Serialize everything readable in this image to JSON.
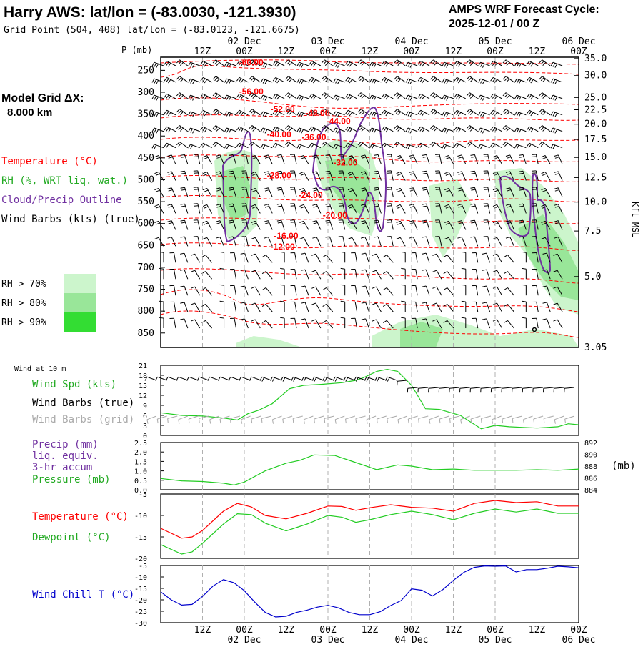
{
  "header": {
    "title": "Harry AWS:  lat/lon = (-83.0030, -121.3930)",
    "subtitle": "Grid Point (504, 408) lat/lon = (-83.0123, -121.6675)",
    "cycle_line1": "AMPS WRF Forecast Cycle:",
    "cycle_line2": "2025-12-01 / 00  Z"
  },
  "grid_label": {
    "line1": "Model Grid ΔX:",
    "line2": "8.000 km"
  },
  "legend": {
    "temperature": "Temperature (°C)",
    "rh": "RH (%, WRT liq. wat.)",
    "cloud": "Cloud/Precip Outline",
    "wind": "Wind Barbs (kts) (true)",
    "rh70": "RH > 70%",
    "rh80": "RH > 80%",
    "rh90": "RH > 90%"
  },
  "time_axis": {
    "date_labels": [
      "02 Dec",
      "03 Dec",
      "04 Dec",
      "05 Dec",
      "06 Dec"
    ],
    "hour_labels": [
      "12Z",
      "00Z",
      "12Z",
      "00Z",
      "12Z",
      "00Z",
      "12Z",
      "00Z",
      "12Z",
      "00Z"
    ],
    "hours": [
      12,
      24,
      36,
      48,
      60,
      72,
      84,
      96,
      108,
      120
    ],
    "date_hours": [
      24,
      48,
      72,
      96,
      120
    ]
  },
  "colors": {
    "temperature": "#ff0000",
    "rh": "#22cc22",
    "cloud": "#7030a0",
    "wind": "#000000",
    "wind_grid": "#aaaaaa",
    "windchill": "#0000cc",
    "rh70": "#ccf5cc",
    "rh80": "#99e699",
    "rh90": "#33dd33"
  },
  "chart_data": [
    {
      "type": "heatmap",
      "title": "Vertical cross-section",
      "ylabel": "P (mb)",
      "y2label": "Kft MSL",
      "p_ticks": [
        250,
        300,
        350,
        400,
        450,
        500,
        550,
        600,
        650,
        700,
        750,
        800,
        850
      ],
      "height_ticks": [
        "35.0",
        "30.0",
        "25.0",
        "22.5",
        "20.0",
        "17.5",
        "15.0",
        "12.5",
        "10.0",
        "7.5",
        "5.0",
        "3.05"
      ],
      "height_tick_p": [
        223,
        262,
        312,
        340,
        373,
        408,
        449,
        495,
        551,
        617,
        721,
        883
      ],
      "xlim": [
        0,
        120
      ],
      "ylim": [
        883,
        220
      ],
      "isotherm_labels": [
        {
          "text": "-60.00",
          "hour": 26,
          "p": 232
        },
        {
          "text": "-56.00",
          "hour": 26,
          "p": 298
        },
        {
          "text": "-52.00",
          "hour": 35,
          "p": 338
        },
        {
          "text": "-48.00",
          "hour": 45,
          "p": 347
        },
        {
          "text": "-44.00",
          "hour": 51,
          "p": 366
        },
        {
          "text": "-40.00",
          "hour": 34,
          "p": 396
        },
        {
          "text": "-36.00",
          "hour": 44,
          "p": 403
        },
        {
          "text": "-32.00",
          "hour": 53,
          "p": 461
        },
        {
          "text": "-28.00",
          "hour": 34,
          "p": 490
        },
        {
          "text": "-24.00",
          "hour": 43,
          "p": 535
        },
        {
          "text": "-20.00",
          "hour": 50,
          "p": 581
        },
        {
          "text": "-16.00",
          "hour": 36,
          "p": 628
        },
        {
          "text": "-12.00",
          "hour": 35,
          "p": 653
        }
      ]
    },
    {
      "type": "line",
      "title": "Wind at 10 m",
      "series_labels": [
        "Wind Spd (kts)",
        "Wind Barbs (true)",
        "Wind Barbs (grid)"
      ],
      "y_ticks": [
        "21",
        "18",
        "15",
        "12",
        "9",
        "6",
        "3",
        "0"
      ],
      "ylim": [
        0,
        21
      ],
      "series": [
        {
          "name": "Wind Spd (kts)",
          "x": [
            0,
            6,
            12,
            18,
            22,
            25,
            28,
            32,
            37,
            41,
            46,
            52,
            56,
            58,
            62,
            65,
            68,
            72,
            76,
            80,
            86,
            92,
            96,
            100,
            104,
            108,
            114,
            117,
            120
          ],
          "values": [
            6.8,
            6.0,
            5.8,
            5.2,
            4.6,
            6.5,
            7.5,
            9.5,
            14.0,
            15.0,
            15.3,
            15.8,
            16.5,
            17.2,
            19.2,
            19.8,
            19.2,
            15.0,
            8.0,
            7.8,
            6.0,
            2.0,
            3.0,
            2.6,
            2.4,
            2.2,
            2.6,
            3.5,
            3.2
          ]
        }
      ]
    },
    {
      "type": "line",
      "series_labels": [
        "Precip (mm)",
        "liq. equiv.",
        "3-hr accum",
        "Pressure (mb)"
      ],
      "y_ticks": [
        "2.5",
        "2.0",
        "1.5",
        "1.0",
        "0.5",
        "0.0"
      ],
      "y2_ticks": [
        "892",
        "890",
        "888",
        "886",
        "884"
      ],
      "ylim": [
        0,
        2.5
      ],
      "y2lim": [
        884,
        892
      ],
      "series": [
        {
          "name": "Precip (mm)",
          "x": [
            0,
            120
          ],
          "values": [
            0,
            0
          ]
        },
        {
          "name": "Pressure (mb)",
          "x": [
            0,
            6,
            12,
            18,
            21,
            24,
            30,
            36,
            40,
            44,
            50,
            56,
            62,
            68,
            72,
            78,
            84,
            90,
            96,
            102,
            108,
            114,
            120
          ],
          "values": [
            885.9,
            885.5,
            885.4,
            885.1,
            884.8,
            885.3,
            887.2,
            888.5,
            889.0,
            889.9,
            889.8,
            888.6,
            887.4,
            888.2,
            888.0,
            887.4,
            887.5,
            887.3,
            887.3,
            887.3,
            887.4,
            887.3,
            887.5
          ]
        }
      ]
    },
    {
      "type": "line",
      "series_labels": [
        "Temperature (°C)",
        "Dewpoint (°C)"
      ],
      "y_ticks": [
        "-5",
        "-10",
        "-15",
        "-20"
      ],
      "ylim": [
        -20,
        -5
      ],
      "series": [
        {
          "name": "Temperature (°C)",
          "x": [
            0,
            6,
            9,
            12,
            18,
            22,
            26,
            30,
            36,
            42,
            48,
            52,
            56,
            60,
            66,
            72,
            78,
            84,
            90,
            96,
            102,
            108,
            114,
            120
          ],
          "values": [
            -13.0,
            -15.3,
            -15.0,
            -13.5,
            -9.0,
            -7.2,
            -8.0,
            -10.0,
            -10.8,
            -9.5,
            -7.8,
            -7.9,
            -8.8,
            -8.2,
            -7.5,
            -8.1,
            -8.3,
            -9.0,
            -7.2,
            -6.5,
            -7.0,
            -6.8,
            -7.8,
            -7.8
          ]
        },
        {
          "name": "Dewpoint (°C)",
          "x": [
            0,
            6,
            9,
            12,
            18,
            22,
            26,
            30,
            36,
            42,
            48,
            52,
            56,
            60,
            66,
            72,
            78,
            84,
            90,
            96,
            102,
            108,
            114,
            120
          ],
          "values": [
            -16.8,
            -19.0,
            -18.5,
            -16.5,
            -12.0,
            -9.6,
            -9.8,
            -11.8,
            -13.6,
            -12.0,
            -10.0,
            -10.4,
            -11.6,
            -11.0,
            -9.8,
            -9.0,
            -9.8,
            -11.0,
            -9.5,
            -8.5,
            -9.2,
            -8.5,
            -9.5,
            -9.5
          ]
        }
      ]
    },
    {
      "type": "line",
      "series_labels": [
        "Wind Chill T (°C)"
      ],
      "y_ticks": [
        "-5",
        "-10",
        "-15",
        "-20",
        "-25",
        "-30"
      ],
      "ylim": [
        -30,
        -5
      ],
      "series": [
        {
          "name": "Wind Chill T (°C)",
          "x": [
            0,
            3,
            6,
            9,
            12,
            15,
            18,
            21,
            24,
            27,
            30,
            33,
            36,
            39,
            42,
            45,
            48,
            51,
            54,
            57,
            60,
            63,
            66,
            69,
            72,
            75,
            78,
            81,
            84,
            87,
            90,
            93,
            96,
            99,
            102,
            105,
            108,
            111,
            114,
            117,
            120
          ],
          "values": [
            -16.5,
            -20,
            -22.3,
            -22,
            -18.5,
            -14,
            -11.2,
            -12.5,
            -16,
            -21,
            -25.5,
            -27.5,
            -27.2,
            -25.5,
            -24.5,
            -23.2,
            -22.4,
            -23.5,
            -25.5,
            -26.5,
            -26.5,
            -25.2,
            -22.5,
            -20.3,
            -15.2,
            -15.8,
            -18.3,
            -15.5,
            -11.5,
            -8.0,
            -5.8,
            -5.2,
            -5.3,
            -5.2,
            -7.8,
            -6.8,
            -6.8,
            -6.2,
            -5.3,
            -5.6,
            -6.0
          ]
        }
      ]
    }
  ],
  "surface_labels": {
    "wind_header": "Wind at 10 m",
    "wind_speed": "Wind Spd (kts)",
    "wind_barbs_true": "Wind Barbs (true)",
    "wind_barbs_grid": "Wind Barbs (grid)",
    "precip1": "Precip (mm)",
    "precip2": "liq. equiv.",
    "precip3": "3-hr accum",
    "pressure": "Pressure (mb)",
    "pressure_unit": "(mb)",
    "temperature": "Temperature (°C)",
    "dewpoint": "Dewpoint (°C)",
    "windchill": "Wind Chill T (°C)"
  }
}
